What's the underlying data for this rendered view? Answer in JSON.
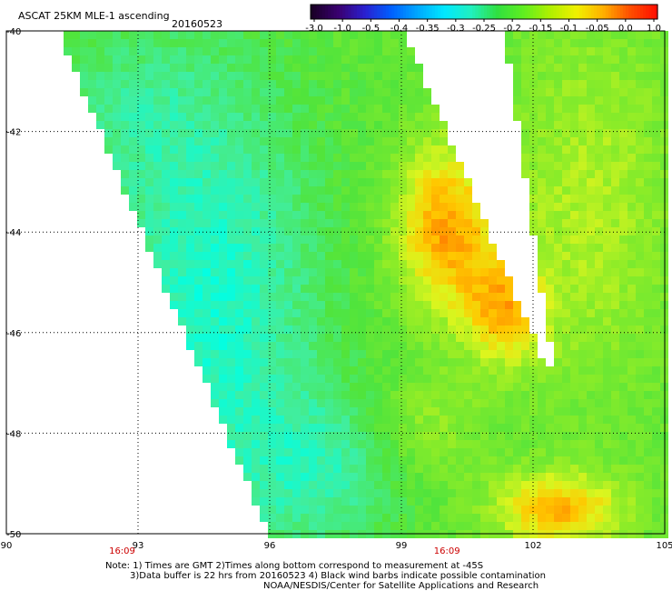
{
  "header": {
    "title": "ASCAT 25KM MLE-1 ascending",
    "date": "20160523"
  },
  "colorbar": {
    "labels": [
      "-3.0",
      "-1.0",
      "-0.5",
      "-0.4",
      "-0.35",
      "-0.3",
      "-0.25",
      "-0.2",
      "-0.15",
      "-0.1",
      "-0.05",
      "0.0",
      "1.0"
    ],
    "colors": [
      "#1a0026",
      "#3a0070",
      "#2a20d0",
      "#0060ff",
      "#00a8ff",
      "#00e8ff",
      "#20f0c0",
      "#30e040",
      "#60ee20",
      "#b0f000",
      "#f0f000",
      "#ffb000",
      "#ff5000",
      "#ff1000"
    ]
  },
  "map": {
    "lon_ticks": [
      "90",
      "93",
      "96",
      "99",
      "102",
      "105"
    ],
    "lat_ticks": [
      "-40",
      "-42",
      "-44",
      "-46",
      "-48",
      "-50"
    ],
    "times": [
      "16:09",
      "16:09"
    ]
  },
  "notes": [
    "Note: 1) Times are GMT 2)Times along bottom correspond to measurement at -45S",
    "3)Data buffer is 22 hrs from 20160523 4) Black wind barbs indicate possible contamination",
    "NOAA/NESDIS/Center for Satellite Applications and Research"
  ]
}
